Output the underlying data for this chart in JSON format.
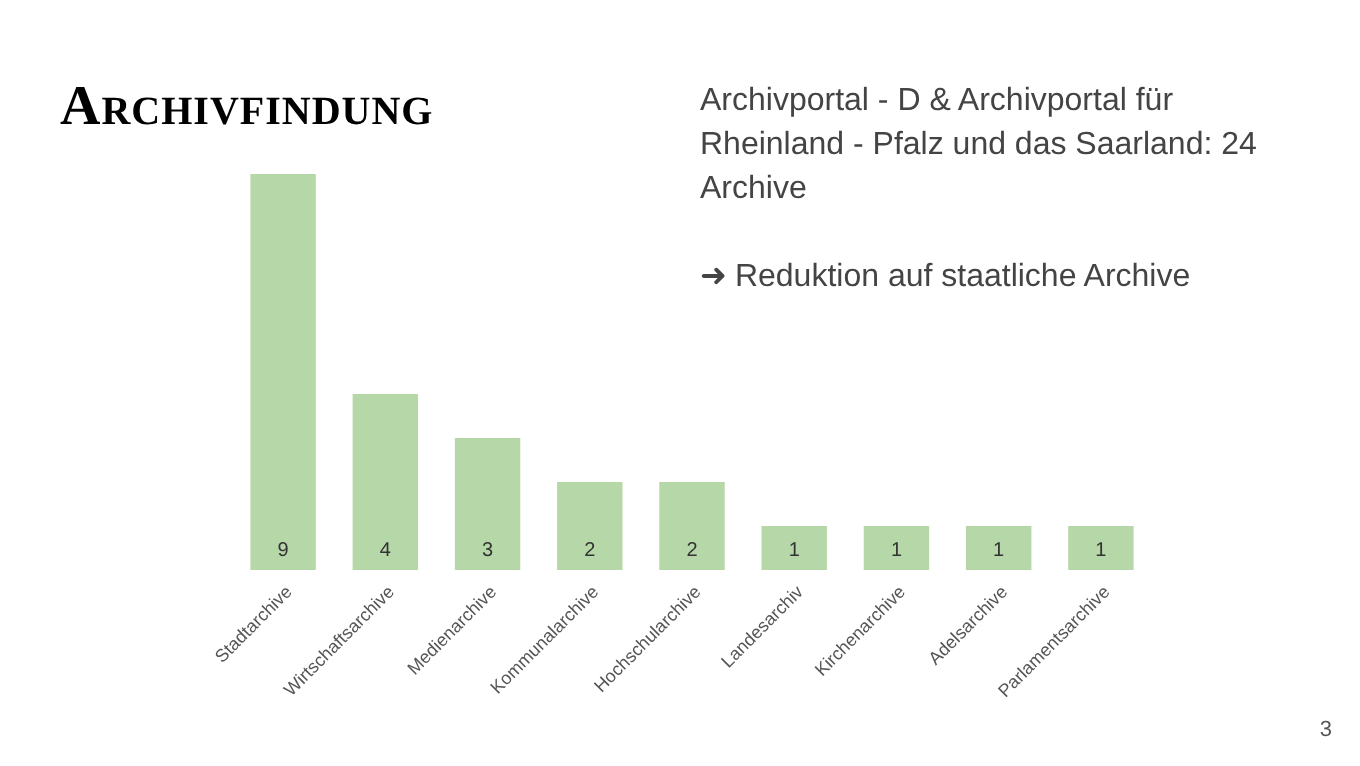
{
  "chart_data": {
    "type": "bar",
    "title": "Archivfindung",
    "annotations": [
      "Archivportal - D & Archivportal für Rheinland - Pfalz und das Saarland: 24 Archive",
      "➜ Reduktion auf staatliche Archive",
      "3"
    ],
    "categories": [
      "Stadtarchive",
      "Wirtschaftsarchive",
      "Medienarchive",
      "Kommunalarchive",
      "Hochschularchive",
      "Landesarchiv",
      "Kirchenarchive",
      "Adelsarchive",
      "Parlamentsarchive"
    ],
    "values": [
      9,
      4,
      3,
      2,
      2,
      1,
      1,
      1,
      1
    ],
    "color": "#b6d7a8",
    "data_labels": true
  }
}
